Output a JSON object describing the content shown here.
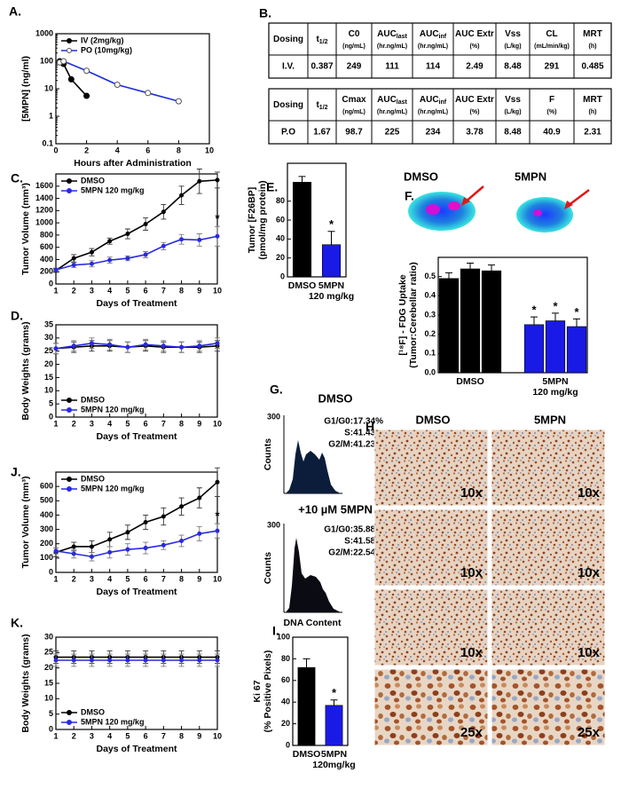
{
  "chart_data": [
    {
      "type": "line",
      "label": "A.",
      "log_y": true,
      "xlabel": "Hours after Administration",
      "ylabel": "[5MPN] (ng/ml)",
      "xlim": [
        0,
        10
      ],
      "xticks": [
        0,
        2,
        4,
        6,
        8,
        10
      ],
      "ylim": [
        0.1,
        1000
      ],
      "yticks": [
        0.1,
        1,
        10,
        100,
        1000
      ],
      "legend": "upper left",
      "series": [
        {
          "name": "IV (2mg/kg)",
          "color": "#000000",
          "marker": "filled",
          "x": [
            0.25,
            0.5,
            1,
            2
          ],
          "values": [
            100,
            80,
            22,
            5.5
          ]
        },
        {
          "name": "PO (10mg/kg)",
          "color": "#1f2fd6",
          "marker": "open",
          "x": [
            0.25,
            0.5,
            2,
            4,
            6,
            8
          ],
          "values": [
            90,
            100,
            45,
            14,
            7,
            3.5
          ]
        }
      ]
    },
    {
      "type": "line",
      "label": "C.",
      "xlabel": "Days of Treatment",
      "ylabel": "Tumor Volume (mm³)",
      "x": [
        1,
        2,
        3,
        4,
        5,
        6,
        7,
        8,
        9,
        10
      ],
      "xlim": [
        1,
        10
      ],
      "xticks": [
        1,
        2,
        3,
        4,
        5,
        6,
        7,
        8,
        9,
        10
      ],
      "ylim": [
        0,
        1800
      ],
      "yticks": [
        0,
        200,
        400,
        600,
        800,
        1000,
        1200,
        1400,
        1600
      ],
      "legend": "upper left",
      "series": [
        {
          "name": "DMSO",
          "color": "#000000",
          "marker": "filled",
          "values": [
            220,
            420,
            520,
            700,
            820,
            980,
            1180,
            1450,
            1680,
            1700
          ],
          "errors": [
            30,
            60,
            60,
            50,
            80,
            100,
            120,
            150,
            200,
            130
          ]
        },
        {
          "name": "5MPN 120 mg/kg",
          "color": "#2a2ae0",
          "marker": "filled",
          "values": [
            230,
            310,
            330,
            390,
            420,
            480,
            620,
            730,
            720,
            780
          ],
          "errors": [
            30,
            40,
            50,
            50,
            40,
            50,
            60,
            80,
            100,
            160
          ]
        }
      ],
      "annotations": [
        {
          "series": 1,
          "index": 9,
          "text": "*"
        }
      ]
    },
    {
      "type": "line",
      "label": "D.",
      "xlabel": "Days of Treatment",
      "ylabel": "Body Weights (grams)",
      "x": [
        1,
        2,
        3,
        4,
        5,
        6,
        7,
        8,
        9,
        10
      ],
      "xlim": [
        1,
        10
      ],
      "xticks": [
        1,
        2,
        3,
        4,
        5,
        6,
        7,
        8,
        9,
        10
      ],
      "ylim": [
        0,
        35
      ],
      "yticks": [
        0,
        5,
        10,
        15,
        20,
        25,
        30,
        35
      ],
      "legend": "lower left",
      "series": [
        {
          "name": "DMSO",
          "color": "#000000",
          "marker": "filled",
          "values": [
            26,
            26.5,
            27,
            27,
            26.5,
            27,
            26.5,
            26.5,
            26.5,
            27
          ],
          "errors": [
            2,
            2,
            2,
            2,
            2,
            2,
            2,
            2,
            2,
            2
          ]
        },
        {
          "name": "5MPN 120 mg/kg",
          "color": "#2a2ae0",
          "marker": "filled",
          "values": [
            26,
            27,
            28,
            27.5,
            26.5,
            27.5,
            27,
            26.5,
            27,
            28
          ],
          "errors": [
            2,
            2,
            2,
            2,
            2,
            2,
            2,
            2,
            2,
            2
          ]
        }
      ]
    },
    {
      "type": "line",
      "label": "J.",
      "xlabel": "Days of Treatment",
      "ylabel": "Tumor Volume (mm³)",
      "x": [
        1,
        2,
        3,
        4,
        5,
        6,
        7,
        8,
        9,
        10
      ],
      "xlim": [
        1,
        10
      ],
      "xticks": [
        1,
        2,
        3,
        4,
        5,
        6,
        7,
        8,
        9,
        10
      ],
      "ylim": [
        0,
        700
      ],
      "yticks": [
        0,
        100,
        200,
        300,
        400,
        500,
        600
      ],
      "legend": "upper left",
      "series": [
        {
          "name": "DMSO",
          "color": "#000000",
          "marker": "filled",
          "values": [
            140,
            180,
            180,
            230,
            280,
            350,
            390,
            460,
            520,
            630
          ],
          "errors": [
            30,
            30,
            40,
            50,
            50,
            50,
            60,
            60,
            70,
            100
          ]
        },
        {
          "name": "5MPN 120 mg/kg",
          "color": "#2a2ae0",
          "marker": "filled",
          "values": [
            150,
            130,
            110,
            140,
            160,
            170,
            190,
            220,
            270,
            290
          ],
          "errors": [
            20,
            30,
            30,
            40,
            40,
            40,
            30,
            40,
            50,
            50
          ]
        }
      ],
      "annotations": [
        {
          "series": 1,
          "index": 9,
          "text": "*"
        }
      ]
    },
    {
      "type": "line",
      "label": "K.",
      "xlabel": "Days of Treatment",
      "ylabel": "Body Weights (grams)",
      "x": [
        1,
        2,
        3,
        4,
        5,
        6,
        7,
        8,
        9,
        10
      ],
      "xlim": [
        1,
        10
      ],
      "xticks": [
        1,
        2,
        3,
        4,
        5,
        6,
        7,
        8,
        9,
        10
      ],
      "ylim": [
        0,
        30
      ],
      "yticks": [
        0,
        5,
        10,
        15,
        20,
        25,
        30
      ],
      "legend": "lower left",
      "series": [
        {
          "name": "DMSO",
          "color": "#000000",
          "marker": "filled",
          "values": [
            23.5,
            23.5,
            23.5,
            23.5,
            23.5,
            23.5,
            23.5,
            23.5,
            23.5,
            23.5
          ],
          "errors": [
            2,
            2,
            2,
            2,
            2,
            2,
            2,
            2,
            2,
            2
          ]
        },
        {
          "name": "5MPN 120 mg/kg",
          "color": "#2a2ae0",
          "marker": "filled",
          "values": [
            22.5,
            22.5,
            22.5,
            22.5,
            22.5,
            22.5,
            22.5,
            22.5,
            22.5,
            22.5
          ],
          "errors": [
            2,
            2,
            2,
            2,
            2,
            2,
            2,
            2,
            2,
            2
          ]
        }
      ]
    },
    {
      "type": "bar",
      "label": "E.",
      "ylabel": [
        "Tumor [F26BP]",
        "(pmol/mg protein)"
      ],
      "categories": [
        "DMSO",
        [
          "5MPN",
          "120 mg/kg"
        ]
      ],
      "values": [
        100,
        34
      ],
      "errors": [
        6,
        14
      ],
      "colors": [
        "#000000",
        "#1a1ae6"
      ],
      "ylim": [
        0,
        120
      ],
      "yticks": [
        0,
        20,
        40,
        60,
        80
      ],
      "annotations": [
        {
          "index": 1,
          "text": "*"
        }
      ]
    },
    {
      "type": "bar",
      "label": "F.",
      "ylabel": [
        "[¹⁸F] - FDG Uptake",
        "(Tumor:Cerebellar ratio)"
      ],
      "categories": [
        null,
        "DMSO",
        null,
        null,
        [
          "5MPN",
          "120 mg/kg"
        ],
        null
      ],
      "values": [
        0.49,
        0.54,
        0.53,
        0.25,
        0.27,
        0.24
      ],
      "errors": [
        0.03,
        0.03,
        0.03,
        0.04,
        0.04,
        0.04
      ],
      "colors": [
        "#000000",
        "#000000",
        "#000000",
        "#1a1ae6",
        "#1a1ae6",
        "#1a1ae6"
      ],
      "ylim": [
        0,
        0.6
      ],
      "yticks": [
        {
          "value": 0,
          "label": "0.0"
        },
        0.1,
        0.2,
        0.3,
        0.4,
        0.5
      ],
      "annotations": [
        {
          "index": 3,
          "text": "*"
        },
        {
          "index": 4,
          "text": "*"
        },
        {
          "index": 5,
          "text": "*"
        }
      ]
    },
    {
      "type": "bar",
      "label": "I.",
      "ylabel": [
        "Ki 67",
        "(% Positive Pixels)"
      ],
      "categories": [
        "DMSO",
        [
          "5MPN",
          "120mg/kg"
        ]
      ],
      "values": [
        72,
        37
      ],
      "errors": [
        8,
        5
      ],
      "colors": [
        "#000000",
        "#1a1ae6"
      ],
      "ylim": [
        0,
        100
      ],
      "yticks": [
        0,
        20,
        40,
        60,
        80,
        100
      ],
      "annotations": [
        {
          "index": 1,
          "text": "*"
        }
      ]
    }
  ],
  "table": {
    "label": "B.",
    "tables": [
      {
        "header": [
          {
            "text": "Dosing"
          },
          {
            "text": "t",
            "sub": "1/2"
          },
          {
            "text": "C0",
            "unit": "(ng/mL)"
          },
          {
            "text": "AUC",
            "sub": "last",
            "unit": "(hr.ng/mL)"
          },
          {
            "text": "AUC",
            "sub": "inf",
            "unit": "(hr.ng/mL)"
          },
          {
            "text": "AUC Extr",
            "unit": "(%)"
          },
          {
            "text": "Vss",
            "unit": "(L/kg)"
          },
          {
            "text": "CL",
            "unit": "(mL/min/kg)"
          },
          {
            "text": "MRT",
            "unit": "(h)"
          }
        ],
        "rows": [
          [
            "I.V.",
            "0.387",
            "249",
            "111",
            "114",
            "2.49",
            "8.48",
            "291",
            "0.485"
          ]
        ]
      },
      {
        "header": [
          {
            "text": "Dosing"
          },
          {
            "text": "t",
            "sub": "1/2"
          },
          {
            "text": "Cmax",
            "unit": "(ng/mL)"
          },
          {
            "text": "AUC",
            "sub": "last",
            "unit": "(hr.ng/mL)"
          },
          {
            "text": "AUC",
            "sub": "inf",
            "unit": "(hr.ng/mL)"
          },
          {
            "text": "AUC Extr",
            "unit": "(%)"
          },
          {
            "text": "Vss",
            "unit": "(L/kg)"
          },
          {
            "text": "F",
            "unit": "(%)"
          },
          {
            "text": "MRT",
            "unit": "(h)"
          }
        ],
        "rows": [
          [
            "P.O",
            "1.67",
            "98.7",
            "225",
            "234",
            "3.78",
            "8.48",
            "40.9",
            "2.31"
          ]
        ]
      }
    ]
  },
  "pet": {
    "labels": [
      "DMSO",
      "5MPN"
    ]
  },
  "cytometry": {
    "label": "G.",
    "ylabel": "Counts",
    "xlabel": "DNA Content",
    "panels": [
      {
        "title": "DMSO",
        "stats": [
          "G1/G0:17.34%",
          "S:41.43%",
          "G2/M:41.23%"
        ],
        "ytick": "300"
      },
      {
        "title": "+10 µM 5MPN",
        "stats": [
          "G1/G0:35.88%",
          "S:41.58%",
          "G2/M:22.54%"
        ],
        "ytick": "300"
      }
    ]
  },
  "ihc": {
    "label": "H.",
    "columns": [
      "DMSO",
      "5MPN"
    ],
    "magnifications": [
      "10x",
      "10x",
      "10x",
      "25x"
    ]
  }
}
